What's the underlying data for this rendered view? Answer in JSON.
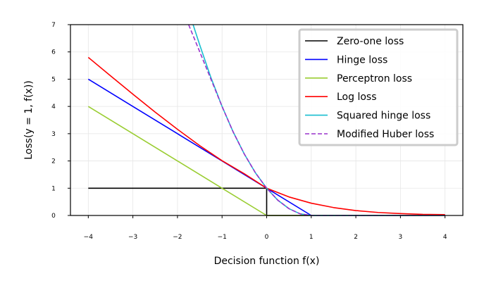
{
  "chart_data": {
    "type": "line",
    "xlabel": "Decision function f(x)",
    "ylabel": "Loss(y = 1, f(x))",
    "xlim": [
      -4.4,
      4.4
    ],
    "ylim": [
      0,
      7
    ],
    "xticks": [
      -4,
      -3,
      -2,
      -1,
      0,
      1,
      2,
      3,
      4
    ],
    "yticks": [
      0,
      1,
      2,
      3,
      4,
      5,
      6,
      7
    ],
    "grid": true,
    "legend_position": "top-right",
    "series": [
      {
        "name": "Zero-one loss",
        "color": "#000000",
        "dash": "solid",
        "x": [
          -4,
          0,
          0,
          4
        ],
        "y": [
          1,
          1,
          0,
          0
        ]
      },
      {
        "name": "Hinge loss",
        "color": "#0000ff",
        "dash": "solid",
        "x": [
          -4,
          -3,
          -2,
          -1,
          0,
          1,
          2,
          3,
          4
        ],
        "y": [
          5,
          4,
          3,
          2,
          1,
          0,
          0,
          0,
          0
        ]
      },
      {
        "name": "Perceptron loss",
        "color": "#9acd32",
        "dash": "solid",
        "x": [
          -4,
          -3,
          -2,
          -1,
          0,
          1,
          2,
          3,
          4
        ],
        "y": [
          4,
          3,
          2,
          1,
          0,
          0,
          0,
          0,
          0
        ]
      },
      {
        "name": "Log loss",
        "color": "#ff0000",
        "dash": "solid",
        "x": [
          -4,
          -3.5,
          -3,
          -2.5,
          -2,
          -1.5,
          -1,
          -0.5,
          0,
          0.5,
          1,
          1.5,
          2,
          2.5,
          3,
          3.5,
          4
        ],
        "y": [
          5.8,
          5.12,
          4.45,
          3.79,
          3.16,
          2.56,
          2.01,
          1.53,
          1.0,
          0.68,
          0.45,
          0.29,
          0.18,
          0.11,
          0.07,
          0.04,
          0.03
        ]
      },
      {
        "name": "Squared hinge loss",
        "color": "#17becf",
        "dash": "solid",
        "x": [
          -1.65,
          -1.5,
          -1.25,
          -1,
          -0.75,
          -0.5,
          -0.25,
          0,
          0.25,
          0.5,
          0.75,
          1,
          2,
          4
        ],
        "y": [
          7.02,
          6.25,
          5.06,
          4,
          3.06,
          2.25,
          1.56,
          1,
          0.56,
          0.25,
          0.06,
          0,
          0,
          0
        ]
      },
      {
        "name": "Modified Huber loss",
        "color": "#9932cc",
        "dash": "dashed",
        "x": [
          -1.75,
          -1.5,
          -1.25,
          -1,
          -0.75,
          -0.5,
          -0.25,
          0,
          0.25,
          0.5,
          0.75,
          1,
          2,
          4
        ],
        "y": [
          7,
          6,
          5,
          4,
          3.06,
          2.25,
          1.56,
          1,
          0.56,
          0.25,
          0.06,
          0,
          0,
          0
        ]
      }
    ]
  }
}
